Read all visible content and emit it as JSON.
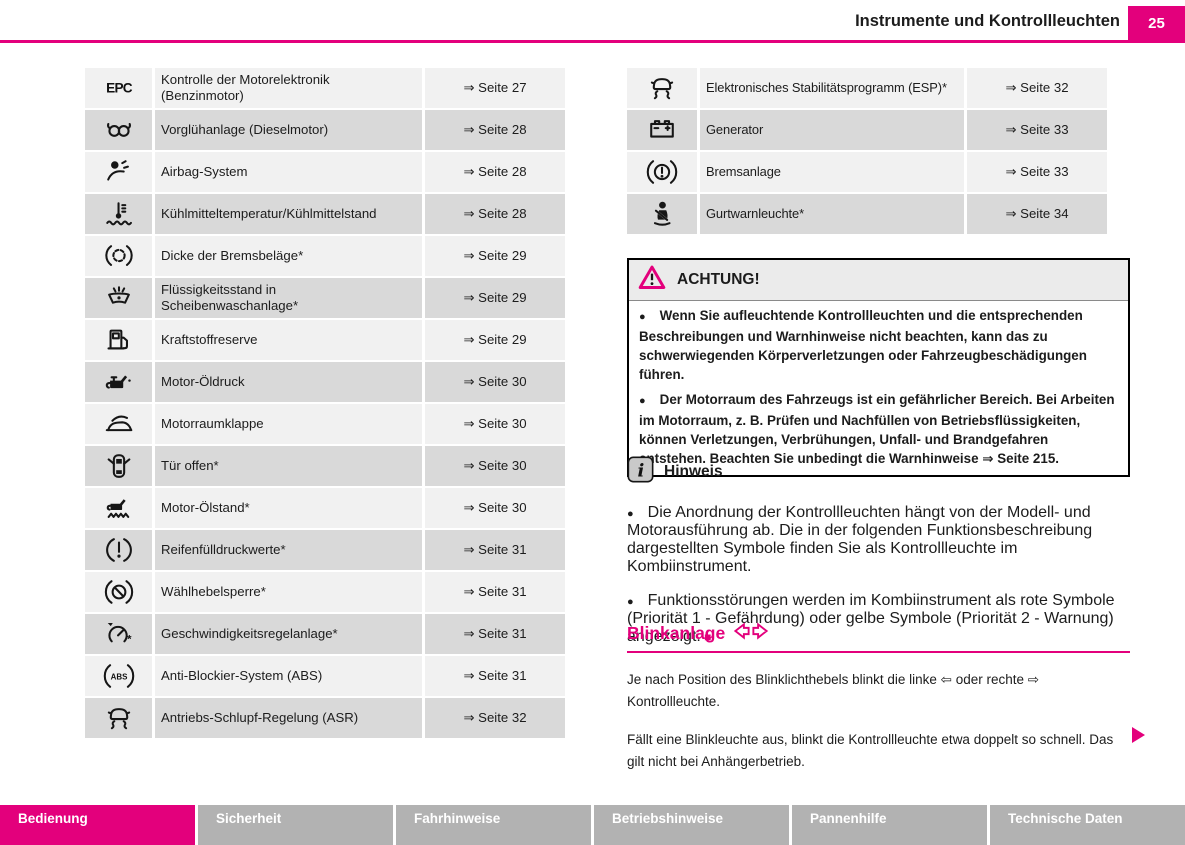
{
  "header": {
    "title": "Instrumente und Kontrollleuchten",
    "page_number": "25"
  },
  "accent_color": "#e3007c",
  "left_table": {
    "rows": [
      {
        "icon": "epc-icon",
        "label": "Kontrolle der Motorelektronik (Benzinmotor)",
        "page": "⇒ Seite 27"
      },
      {
        "icon": "glow-plug-icon",
        "label": "Vorglühanlage (Dieselmotor)",
        "page": "⇒ Seite 28"
      },
      {
        "icon": "airbag-icon",
        "label": "Airbag-System",
        "page": "⇒ Seite 28"
      },
      {
        "icon": "coolant-temp-icon",
        "label": "Kühlmitteltemperatur/Kühlmittelstand",
        "page": "⇒ Seite 28"
      },
      {
        "icon": "brake-pads-icon",
        "label": "Dicke der Bremsbeläge*",
        "page": "⇒ Seite 29"
      },
      {
        "icon": "washer-fluid-icon",
        "label": "Flüssigkeitsstand in Scheibenwaschanlage*",
        "page": "⇒ Seite 29"
      },
      {
        "icon": "fuel-reserve-icon",
        "label": "Kraftstoffreserve",
        "page": "⇒ Seite 29"
      },
      {
        "icon": "oil-pressure-icon",
        "label": "Motor-Öldruck",
        "page": "⇒ Seite 30"
      },
      {
        "icon": "bonnet-icon",
        "label": "Motorraumklappe",
        "page": "⇒ Seite 30"
      },
      {
        "icon": "door-open-icon",
        "label": "Tür offen*",
        "page": "⇒ Seite 30"
      },
      {
        "icon": "oil-level-icon",
        "label": "Motor-Ölstand*",
        "page": "⇒ Seite 30"
      },
      {
        "icon": "tyre-pressure-icon",
        "label": "Reifenfülldruckwerte*",
        "page": "⇒ Seite 31"
      },
      {
        "icon": "selector-lock-icon",
        "label": "Wählhebelsperre*",
        "page": "⇒ Seite 31"
      },
      {
        "icon": "cruise-control-icon",
        "label": "Geschwindigkeitsregelanlage*",
        "page": "⇒ Seite 31"
      },
      {
        "icon": "abs-icon",
        "label": "Anti-Blockier-System (ABS)",
        "page": "⇒ Seite 31"
      },
      {
        "icon": "asr-icon",
        "label": "Antriebs-Schlupf-Regelung (ASR)",
        "page": "⇒ Seite 32"
      }
    ]
  },
  "right_table": {
    "rows": [
      {
        "icon": "esp-icon",
        "label": "Elektronisches Stabilitätsprogramm (ESP)*",
        "page": "⇒ Seite 32"
      },
      {
        "icon": "generator-icon",
        "label": "Generator",
        "page": "⇒ Seite 33"
      },
      {
        "icon": "brake-system-icon",
        "label": "Bremsanlage",
        "page": "⇒ Seite 33"
      },
      {
        "icon": "seatbelt-icon",
        "label": "Gurtwarnleuchte*",
        "page": "⇒ Seite 34"
      }
    ]
  },
  "warning_box": {
    "title": "ACHTUNG!",
    "bullets": [
      "Wenn Sie aufleuchtende Kontrollleuchten und die entsprechenden Beschreibungen und Warnhinweise nicht beachten, kann das zu schwerwiegenden Körperverletzungen oder Fahrzeugbeschädigungen führen.",
      "Der Motorraum des Fahrzeugs ist ein gefährlicher Bereich. Bei Arbeiten im Motorraum, z. B. Prüfen und Nachfüllen von Betriebsflüssigkeiten, können Verletzungen, Verbrühungen, Unfall- und Brandgefahren entstehen. Beachten Sie unbedingt die Warnhinweise ⇒ Seite 215."
    ]
  },
  "note_section": {
    "title": "Hinweis",
    "bullets": [
      "Die Anordnung der Kontrollleuchten hängt von der Modell- und Motorausführung ab. Die in der folgenden Funktionsbeschreibung dargestellten Symbole finden Sie als Kontrollleuchte im Kombiinstrument.",
      "Funktionsstörungen werden im Kombiinstrument als rote Symbole (Priorität 1 - Gefährdung) oder gelbe Symbole (Priorität 2 - Warnung) angezeigt."
    ],
    "end_marker": "■"
  },
  "blinker_section": {
    "title": "Blinkanlage",
    "paragraphs": [
      "Je nach Position des Blinklichthebels blinkt die linke ⇦ oder rechte ⇨ Kontrollleuchte.",
      "Fällt eine Blinkleuchte aus, blinkt die Kontrollleuchte etwa doppelt so schnell. Das gilt nicht bei Anhängerbetrieb."
    ]
  },
  "footer": {
    "tabs": [
      {
        "label": "Bedienung",
        "active": true
      },
      {
        "label": "Sicherheit",
        "active": false
      },
      {
        "label": "Fahrhinweise",
        "active": false
      },
      {
        "label": "Betriebshinweise",
        "active": false
      },
      {
        "label": "Pannenhilfe",
        "active": false
      },
      {
        "label": "Technische Daten",
        "active": false
      }
    ]
  }
}
